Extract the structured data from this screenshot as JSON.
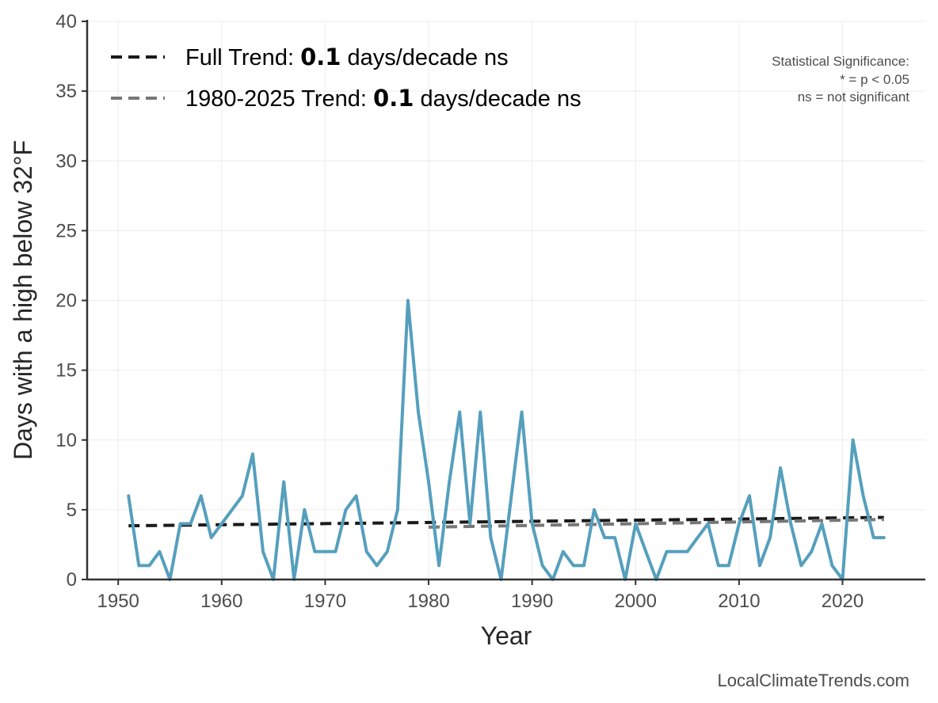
{
  "chart_data": {
    "type": "line",
    "xlabel": "Year",
    "ylabel": "Days with a high below 32°F",
    "xlim": [
      1947,
      2028
    ],
    "ylim": [
      0,
      40
    ],
    "x_ticks": [
      1950,
      1960,
      1970,
      1980,
      1990,
      2000,
      2010,
      2020
    ],
    "y_ticks": [
      0,
      5,
      10,
      15,
      20,
      25,
      30,
      35,
      40
    ],
    "grid": true,
    "series": [
      {
        "name": "Days with a high below 32°F",
        "color": "#559fbd",
        "x": [
          1951,
          1952,
          1953,
          1954,
          1955,
          1956,
          1957,
          1958,
          1959,
          1960,
          1961,
          1962,
          1963,
          1964,
          1965,
          1966,
          1967,
          1968,
          1969,
          1970,
          1971,
          1972,
          1973,
          1974,
          1975,
          1976,
          1977,
          1978,
          1979,
          1980,
          1981,
          1982,
          1983,
          1984,
          1985,
          1986,
          1987,
          1988,
          1989,
          1990,
          1991,
          1992,
          1993,
          1994,
          1995,
          1996,
          1997,
          1998,
          1999,
          2000,
          2001,
          2002,
          2003,
          2004,
          2005,
          2006,
          2007,
          2008,
          2009,
          2010,
          2011,
          2012,
          2013,
          2014,
          2015,
          2016,
          2017,
          2018,
          2019,
          2020,
          2021,
          2022,
          2023,
          2024
        ],
        "values": [
          6,
          1,
          1,
          2,
          0,
          4,
          4,
          6,
          3,
          4,
          5,
          6,
          9,
          2,
          0,
          7,
          0,
          5,
          2,
          2,
          2,
          5,
          6,
          2,
          1,
          2,
          5,
          20,
          12,
          7,
          1,
          7,
          12,
          4,
          12,
          3,
          0,
          6,
          12,
          4,
          1,
          0,
          2,
          1,
          1,
          5,
          3,
          3,
          0,
          4,
          2,
          0,
          2,
          2,
          2,
          3,
          4,
          1,
          1,
          4,
          6,
          1,
          3,
          8,
          4,
          1,
          2,
          4,
          1,
          0,
          10,
          6,
          3,
          3
        ]
      }
    ],
    "trend_lines": [
      {
        "name": "Full Trend",
        "color": "#1a1a1a",
        "x": [
          1951,
          2024
        ],
        "values": [
          3.85,
          4.45
        ]
      },
      {
        "name": "1980-2025 Trend",
        "color": "#777777",
        "x": [
          1980,
          2024
        ],
        "values": [
          3.75,
          4.3
        ]
      }
    ],
    "legend": {
      "placement": "top-left",
      "entries": [
        {
          "prefix": "Full Trend: ",
          "value": "0.1",
          "suffix": " days/decade ns",
          "color": "#1a1a1a"
        },
        {
          "prefix": "1980-2025 Trend: ",
          "value": "0.1",
          "suffix": " days/decade ns",
          "color": "#777777"
        }
      ]
    },
    "annotations": {
      "significance": [
        "Statistical Significance:",
        "* = p < 0.05",
        "ns = not significant"
      ],
      "credit": "LocalClimateTrends.com"
    }
  }
}
